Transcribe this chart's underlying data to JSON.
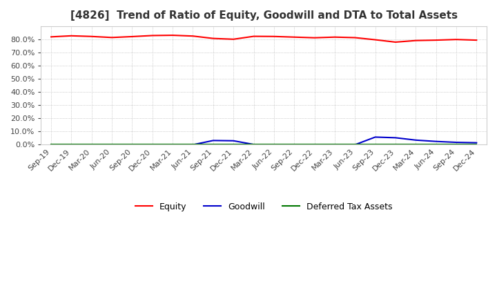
{
  "title": "[4826]  Trend of Ratio of Equity, Goodwill and DTA to Total Assets",
  "title_color": "#333333",
  "background_color": "#ffffff",
  "plot_bg_color": "#ffffff",
  "grid_color": "#aaaaaa",
  "x_labels": [
    "Sep-19",
    "Dec-19",
    "Mar-20",
    "Jun-20",
    "Sep-20",
    "Dec-20",
    "Mar-21",
    "Jun-21",
    "Sep-21",
    "Dec-21",
    "Mar-22",
    "Jun-22",
    "Sep-22",
    "Dec-22",
    "Mar-23",
    "Jun-23",
    "Sep-23",
    "Dec-23",
    "Mar-24",
    "Jun-24",
    "Sep-24",
    "Dec-24"
  ],
  "equity": [
    82.0,
    82.8,
    82.3,
    81.5,
    82.2,
    83.0,
    83.2,
    82.6,
    80.8,
    80.2,
    82.4,
    82.3,
    81.8,
    81.3,
    81.8,
    81.4,
    79.8,
    78.0,
    79.2,
    79.5,
    80.0,
    79.5
  ],
  "goodwill": [
    0.0,
    0.0,
    0.0,
    0.0,
    0.0,
    0.0,
    0.0,
    0.0,
    3.2,
    3.0,
    0.2,
    0.0,
    0.0,
    0.0,
    0.0,
    0.0,
    5.8,
    5.3,
    3.5,
    2.5,
    1.8,
    1.5
  ],
  "dta": [
    0.3,
    0.3,
    0.3,
    0.3,
    0.3,
    0.3,
    0.3,
    0.3,
    0.3,
    0.3,
    0.3,
    0.3,
    0.3,
    0.3,
    0.3,
    0.3,
    0.3,
    0.3,
    0.3,
    0.3,
    0.3,
    0.3
  ],
  "equity_color": "#ff0000",
  "goodwill_color": "#0000cc",
  "dta_color": "#007700",
  "line_width": 1.5,
  "ylim": [
    0,
    90
  ],
  "yticks": [
    0,
    10,
    20,
    30,
    40,
    50,
    60,
    70,
    80
  ],
  "legend_labels": [
    "Equity",
    "Goodwill",
    "Deferred Tax Assets"
  ]
}
